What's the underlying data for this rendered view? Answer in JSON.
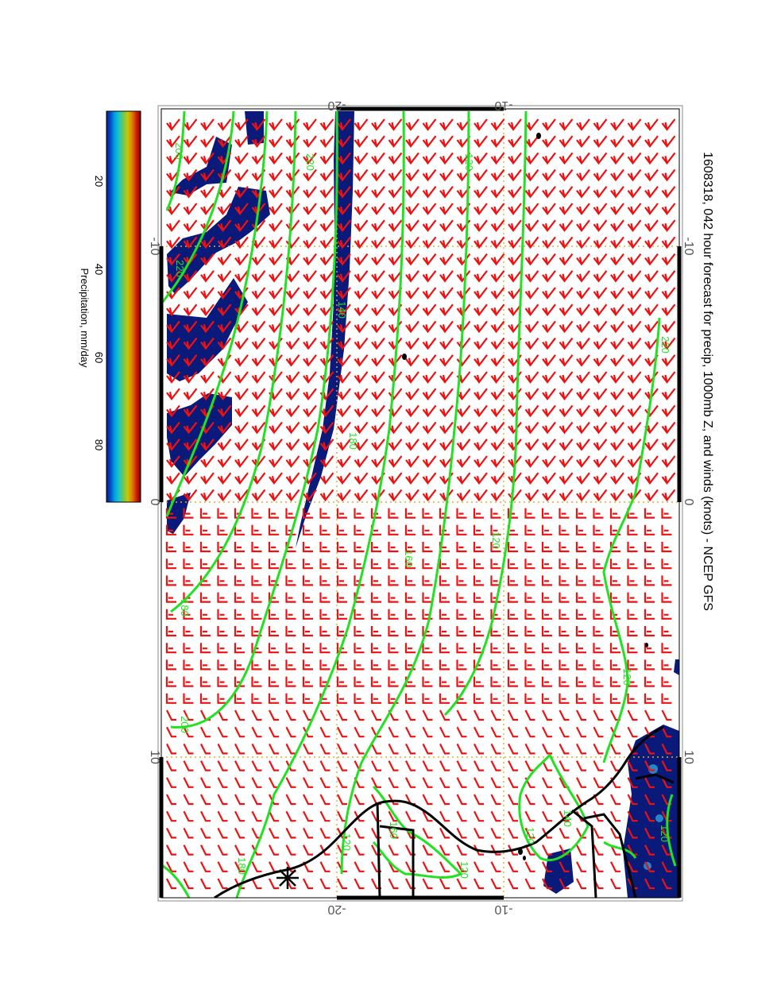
{
  "title": "1608318, 042 hour forecast for precip, 1000mb Z, and winds (knots) - NCEP GFS",
  "colorbar": {
    "label": "Precipitation, mm/day",
    "ticks": [
      "20",
      "40",
      "60",
      "80"
    ],
    "stops": [
      "#0a1a7a",
      "#0050d0",
      "#00a8e0",
      "#20c8c0",
      "#70c850",
      "#c8c800",
      "#e08000",
      "#d02000",
      "#7a0000"
    ]
  },
  "axes": {
    "longitude_ticks": [
      "-10",
      "0",
      "10"
    ],
    "latitude_ticks": [
      "-20",
      "-10"
    ]
  },
  "contour_labels": [
    "200",
    "220",
    "220",
    "120",
    "180",
    "140",
    "160",
    "180",
    "200",
    "220",
    "120",
    "120",
    "180",
    "160",
    "120",
    "120",
    "120",
    "120",
    "140"
  ],
  "colors": {
    "contour": "#22e022",
    "wind_barb": "#ee1111",
    "precip_fill": "#0a1a7a",
    "coastline": "#000000",
    "grid": "#e0b020"
  },
  "map_features": [
    "Wind barbs",
    "1000mb geopotential height contours",
    "Precipitation shading",
    "Coastline",
    "Country borders",
    "Wind station marker"
  ]
}
